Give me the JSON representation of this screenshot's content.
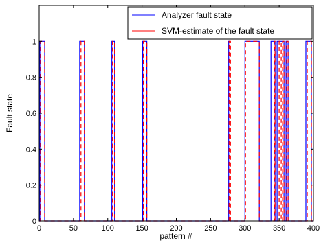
{
  "chart_data": {
    "type": "line",
    "xlabel": "pattern #",
    "ylabel": "Fault state",
    "xlim": [
      0,
      400
    ],
    "ylim": [
      0,
      1.2
    ],
    "x_ticks": [
      0,
      50,
      100,
      150,
      200,
      250,
      300,
      350,
      400
    ],
    "y_ticks": [
      0,
      0.2,
      0.4,
      0.6,
      0.8,
      1
    ],
    "grid": false,
    "legend_position": "top-right",
    "series": [
      {
        "name": "Analyzer fault state",
        "color": "#0000ff",
        "style": "solid",
        "points": [
          [
            0,
            0
          ],
          [
            1,
            0
          ],
          [
            1,
            1
          ],
          [
            8,
            1
          ],
          [
            8,
            0
          ],
          [
            59,
            0
          ],
          [
            59,
            1
          ],
          [
            66,
            1
          ],
          [
            66,
            0
          ],
          [
            106,
            0
          ],
          [
            106,
            1
          ],
          [
            110,
            1
          ],
          [
            110,
            0
          ],
          [
            151,
            0
          ],
          [
            151,
            1
          ],
          [
            157,
            1
          ],
          [
            157,
            0
          ],
          [
            276,
            0
          ],
          [
            276,
            1
          ],
          [
            278,
            1
          ],
          [
            278,
            0
          ],
          [
            300,
            0
          ],
          [
            300,
            1
          ],
          [
            321,
            1
          ],
          [
            321,
            0
          ],
          [
            338,
            0
          ],
          [
            338,
            1
          ],
          [
            344,
            1
          ],
          [
            344,
            0
          ],
          [
            347,
            0
          ],
          [
            347,
            1
          ],
          [
            357,
            1
          ],
          [
            357,
            0
          ],
          [
            360,
            0
          ],
          [
            360,
            1
          ],
          [
            363,
            1
          ],
          [
            363,
            0
          ],
          [
            389,
            0
          ],
          [
            389,
            1
          ],
          [
            397,
            1
          ],
          [
            397,
            0
          ],
          [
            400,
            0
          ]
        ]
      },
      {
        "name": "SVM-estimate of the fault state",
        "color": "#ff0000",
        "style": "dashed",
        "points": [
          [
            0,
            0
          ],
          [
            2,
            0
          ],
          [
            2,
            1
          ],
          [
            8,
            1
          ],
          [
            8,
            0
          ],
          [
            61,
            0
          ],
          [
            61,
            1
          ],
          [
            66,
            1
          ],
          [
            66,
            0
          ],
          [
            107,
            0
          ],
          [
            107,
            1
          ],
          [
            110,
            1
          ],
          [
            110,
            0
          ],
          [
            152,
            0
          ],
          [
            152,
            1
          ],
          [
            157,
            1
          ],
          [
            157,
            0
          ],
          [
            277,
            0
          ],
          [
            277,
            1
          ],
          [
            279,
            1
          ],
          [
            279,
            0
          ],
          [
            301,
            0
          ],
          [
            301,
            1
          ],
          [
            321,
            1
          ],
          [
            321,
            0
          ],
          [
            343,
            0
          ],
          [
            343,
            1
          ],
          [
            344,
            1
          ],
          [
            344,
            0
          ],
          [
            350,
            0
          ],
          [
            350,
            1
          ],
          [
            353,
            1
          ],
          [
            353,
            0
          ],
          [
            355,
            0
          ],
          [
            355,
            1
          ],
          [
            357,
            1
          ],
          [
            357,
            0
          ],
          [
            361,
            0
          ],
          [
            361,
            1
          ],
          [
            363,
            1
          ],
          [
            363,
            0
          ],
          [
            391,
            0
          ],
          [
            391,
            1
          ],
          [
            397,
            1
          ],
          [
            397,
            0
          ],
          [
            400,
            0
          ]
        ]
      }
    ]
  }
}
